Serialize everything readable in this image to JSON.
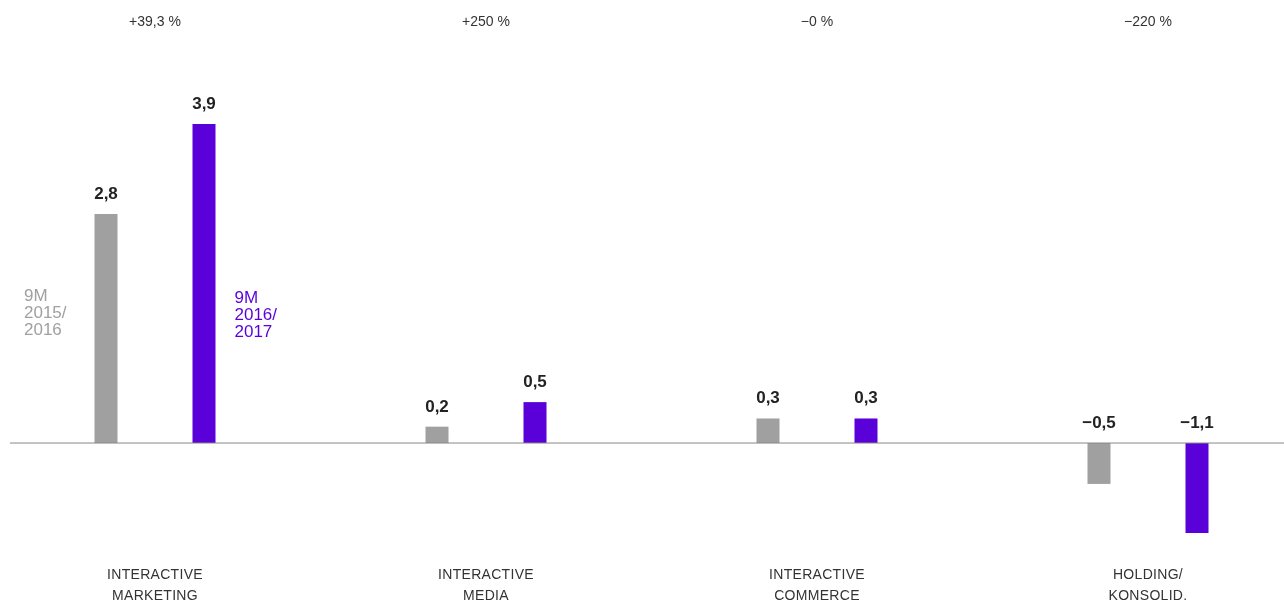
{
  "chart_data": {
    "type": "bar",
    "categories": [
      "INTERACTIVE MARKETING",
      "INTERACTIVE MEDIA",
      "INTERACTIVE COMMERCE",
      "HOLDING/ KONSOLID."
    ],
    "series": [
      {
        "name": "9M 2015/2016",
        "color": "#a0a0a0",
        "values": [
          2.8,
          0.2,
          0.3,
          -0.5
        ],
        "value_labels": [
          "2,8",
          "0,2",
          "0,3",
          "−0,5"
        ]
      },
      {
        "name": "9M 2016/2017",
        "color": "#5a00d8",
        "values": [
          3.9,
          0.5,
          0.3,
          -1.1
        ],
        "value_labels": [
          "3,9",
          "0,5",
          "0,3",
          "−1,1"
        ]
      }
    ],
    "annotations": [
      "+39,3 %",
      "+250 %",
      "−0 %",
      "−220 %"
    ],
    "legend": false
  }
}
